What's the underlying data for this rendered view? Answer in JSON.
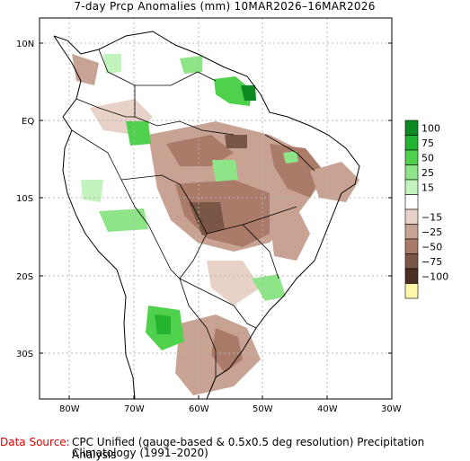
{
  "title": "7-day Prcp Anomalies (mm)  10MAR2026–16MAR2026",
  "map": {
    "lat_ticks": [
      "10N",
      "EQ",
      "10S",
      "20S",
      "30S"
    ],
    "lon_ticks": [
      "80W",
      "70W",
      "60W",
      "50W",
      "40W",
      "30W"
    ],
    "colors": {
      "frame": "#000000",
      "grid": "#b4b4b4",
      "border": "#000000"
    }
  },
  "legend": {
    "items": [
      {
        "label": "100",
        "color": "#0b8a20"
      },
      {
        "label": "75",
        "color": "#22b431"
      },
      {
        "label": "50",
        "color": "#4fd14e"
      },
      {
        "label": "25",
        "color": "#8ee587"
      },
      {
        "label": "15",
        "color": "#c3f3bd"
      },
      {
        "label": "",
        "color": "#ffffff"
      },
      {
        "label": "−15",
        "color": "#e8d2c8"
      },
      {
        "label": "−25",
        "color": "#c8a394"
      },
      {
        "label": "−50",
        "color": "#a97b68"
      },
      {
        "label": "−75",
        "color": "#7a5646"
      },
      {
        "label": "−100",
        "color": "#4b2f25"
      },
      {
        "label": "",
        "color": "#fff6a8"
      }
    ]
  },
  "footer": {
    "source_label": "Data Source:",
    "source_text": "CPC Unified (gauge-based & 0.5x0.5 deg resolution) Precipitation Analysis",
    "climatology": "Climatology (1991–2020)"
  }
}
